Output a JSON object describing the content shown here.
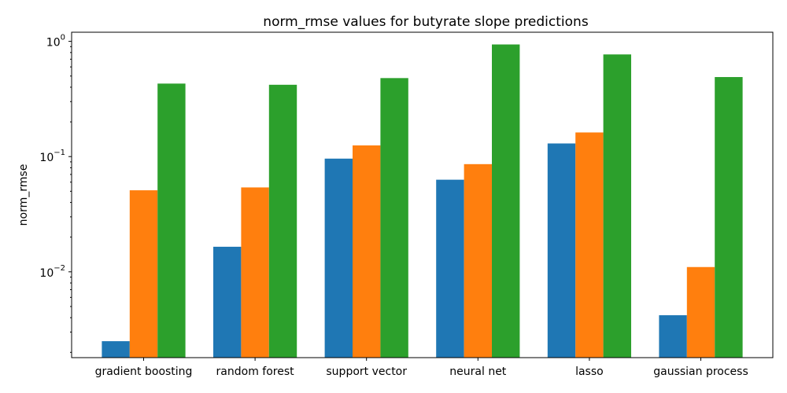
{
  "chart_data": {
    "type": "bar",
    "title": "norm_rmse values for butyrate slope predictions",
    "xlabel": "",
    "ylabel": "norm_rmse",
    "yscale": "log",
    "ylim": [
      0.0018,
      1.2
    ],
    "categories": [
      "gradient boosting",
      "random forest",
      "support vector",
      "neural net",
      "lasso",
      "gaussian process"
    ],
    "series": [
      {
        "name": "",
        "color": "#1f77b4",
        "values": [
          0.0025,
          0.0165,
          0.096,
          0.063,
          0.13,
          0.0042
        ]
      },
      {
        "name": "",
        "color": "#ff7f0e",
        "values": [
          0.051,
          0.054,
          0.125,
          0.086,
          0.162,
          0.011
        ]
      },
      {
        "name": "",
        "color": "#2ca02c",
        "values": [
          0.43,
          0.42,
          0.48,
          0.94,
          0.77,
          0.49
        ]
      }
    ],
    "yticks": [
      {
        "value": 0.01,
        "base": "10",
        "exp": "−2"
      },
      {
        "value": 0.1,
        "base": "10",
        "exp": "−1"
      },
      {
        "value": 1,
        "base": "10",
        "exp": "0"
      }
    ],
    "grid": false,
    "legend": "none"
  }
}
